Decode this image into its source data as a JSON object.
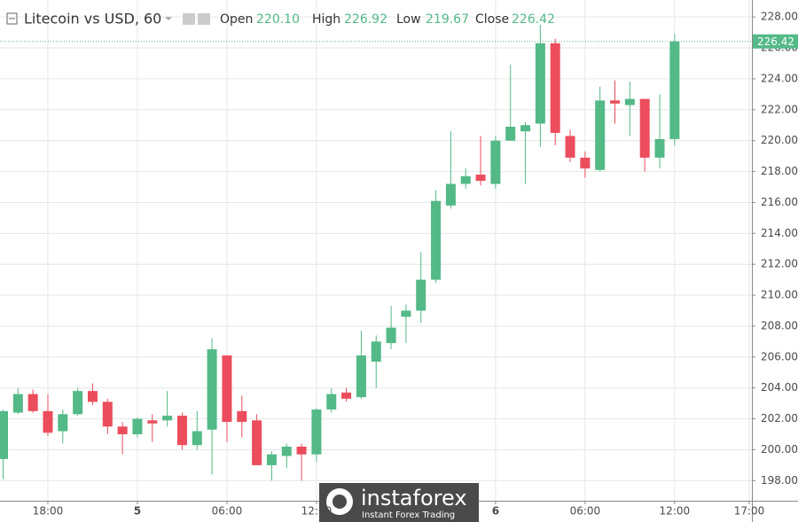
{
  "chart_data": {
    "type": "candlestick",
    "title": "Litecoin vs USD, 60",
    "header": {
      "open_label": "Open",
      "open": "220.10",
      "high_label": "High",
      "high": "226.92",
      "low_label": "Low",
      "low": "219.67",
      "close_label": "Close",
      "close": "226.42"
    },
    "watermark": {
      "brand": "instaforex",
      "tagline": "Instant Forex Trading"
    },
    "categories": [
      null,
      null,
      null,
      "18:00",
      null,
      null,
      null,
      null,
      null,
      "5",
      null,
      null,
      null,
      null,
      null,
      "06:00",
      null,
      null,
      null,
      null,
      null,
      "12:00",
      null,
      null,
      null,
      null,
      null,
      null,
      null,
      null,
      null,
      null,
      null,
      "6",
      null,
      null,
      null,
      null,
      null,
      "06:00",
      null,
      null,
      null,
      null,
      null,
      "12:00",
      null,
      null,
      null,
      null,
      "17:00"
    ],
    "open": [
      199.4,
      202.4,
      203.6,
      202.5,
      201.2,
      202.3,
      203.8,
      203.1,
      201.5,
      201.0,
      201.9,
      201.9,
      202.2,
      200.3,
      201.3,
      206.1,
      202.5,
      201.9,
      199.0,
      199.6,
      200.2,
      199.7,
      202.6,
      203.7,
      203.4,
      205.7,
      206.9,
      208.6,
      209.0,
      211.0,
      215.8,
      217.2,
      217.8,
      217.2,
      220.0,
      220.6,
      221.1,
      226.3,
      220.3,
      218.9,
      218.1,
      222.6,
      222.3,
      222.7,
      218.9,
      220.1,
      null,
      null,
      null,
      null,
      null
    ],
    "high": [
      202.6,
      204.0,
      203.9,
      203.6,
      202.6,
      204.0,
      204.3,
      203.3,
      201.8,
      202.1,
      202.3,
      203.8,
      202.4,
      202.5,
      207.2,
      206.1,
      203.5,
      202.3,
      199.9,
      200.4,
      200.4,
      202.7,
      204.0,
      204.0,
      207.7,
      207.4,
      209.3,
      209.4,
      212.8,
      216.8,
      220.6,
      218.2,
      220.3,
      220.3,
      224.9,
      221.2,
      227.5,
      226.6,
      220.7,
      219.3,
      223.5,
      223.9,
      223.8,
      222.7,
      223.0,
      226.92,
      null,
      null,
      null,
      null,
      null
    ],
    "low": [
      198.1,
      202.3,
      202.4,
      200.9,
      200.4,
      202.2,
      202.9,
      201.0,
      199.7,
      200.8,
      200.5,
      201.5,
      200.0,
      200.0,
      198.4,
      200.5,
      200.8,
      199.0,
      198.0,
      198.8,
      198.0,
      199.2,
      202.4,
      203.1,
      203.3,
      204.0,
      206.5,
      206.9,
      208.2,
      210.8,
      215.6,
      216.9,
      217.1,
      216.9,
      220.0,
      217.2,
      219.6,
      219.7,
      218.6,
      217.6,
      218.0,
      221.1,
      220.3,
      218.0,
      218.2,
      219.67,
      null,
      null,
      null,
      null,
      null
    ],
    "close": [
      202.5,
      203.6,
      202.5,
      201.1,
      202.3,
      203.8,
      203.1,
      201.5,
      201.0,
      202.0,
      201.7,
      202.2,
      200.3,
      201.2,
      206.5,
      201.8,
      201.8,
      199.0,
      199.7,
      200.2,
      199.7,
      202.6,
      203.6,
      203.3,
      206.1,
      207.0,
      207.9,
      209.0,
      211.0,
      216.1,
      217.2,
      217.7,
      217.4,
      220.0,
      220.9,
      221.0,
      226.3,
      220.5,
      218.9,
      218.2,
      222.6,
      222.4,
      222.7,
      218.9,
      220.1,
      226.42,
      null,
      null,
      null,
      null,
      null
    ],
    "up_color": "#53b987",
    "down_color": "#eb4d5c",
    "ylim": [
      196.7,
      229.1
    ],
    "yticks": [
      {
        "value": 198,
        "label": "198.00"
      },
      {
        "value": 200,
        "label": "200.00"
      },
      {
        "value": 202,
        "label": "202.00"
      },
      {
        "value": 204,
        "label": "204.00"
      },
      {
        "value": 206,
        "label": "206.00"
      },
      {
        "value": 208,
        "label": "208.00"
      },
      {
        "value": 210,
        "label": "210.00"
      },
      {
        "value": 212,
        "label": "212.00"
      },
      {
        "value": 214,
        "label": "214.00"
      },
      {
        "value": 216,
        "label": "216.00"
      },
      {
        "value": 218,
        "label": "218.00"
      },
      {
        "value": 220,
        "label": "220.00"
      },
      {
        "value": 222,
        "label": "222.00"
      },
      {
        "value": 224,
        "label": "224.00"
      },
      {
        "value": 226,
        "label": "226.00"
      },
      {
        "value": 228,
        "label": "228.00"
      }
    ],
    "last_price": 226.42,
    "grid": true
  }
}
